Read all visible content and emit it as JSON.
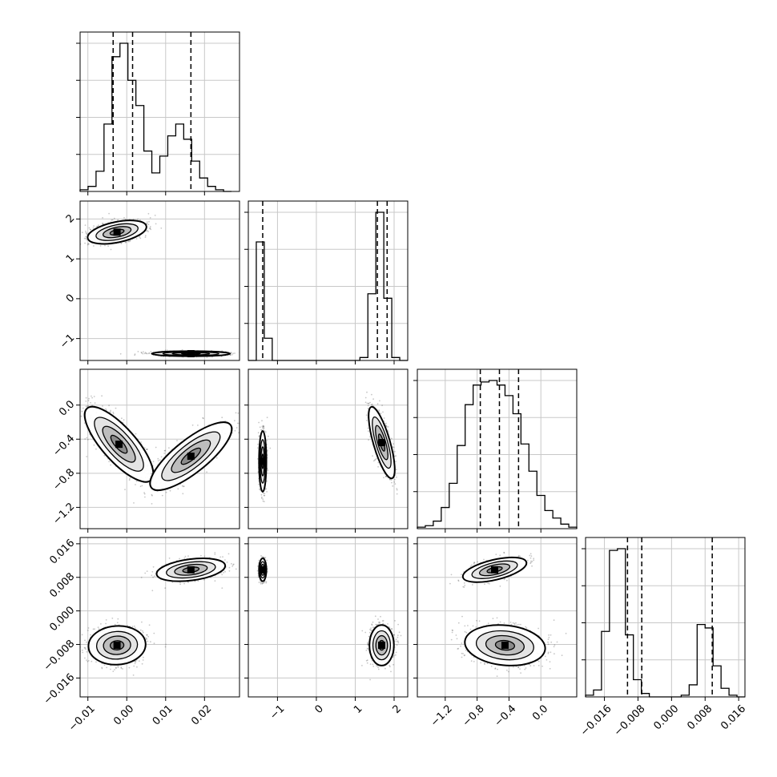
{
  "chart_data": {
    "type": "corner",
    "title": "",
    "n_params": 4,
    "grid": true,
    "parameters": [
      {
        "xlim": [
          -0.012,
          0.029
        ],
        "ylim": [
          -1.55,
          2.45
        ],
        "x_ticks": [
          -0.01,
          0.0,
          0.01,
          0.02
        ],
        "x_tick_labels": [
          "−0.01",
          "0.00",
          "0.01",
          "0.02"
        ],
        "y_ticks": [
          -1,
          0,
          1,
          2
        ],
        "y_tick_labels": [
          "−1",
          "0",
          "1",
          "2"
        ],
        "quantiles": [
          -0.0035,
          0.0015,
          0.0165
        ],
        "hist_bin_width": 0.00205,
        "hist_counts": [
          1,
          3,
          12,
          40,
          80,
          88,
          66,
          51,
          24,
          11,
          21,
          33,
          40,
          31,
          18,
          8,
          3,
          1,
          0
        ]
      },
      {
        "xlim": [
          -1.75,
          2.35
        ],
        "ylim": [
          -1.45,
          0.42
        ],
        "x_ticks": [
          -1,
          0,
          1,
          2
        ],
        "x_tick_labels": [
          "−1",
          "0",
          "1",
          "2"
        ],
        "y_ticks": [
          -1.2,
          -0.8,
          -0.4,
          0.0
        ],
        "y_tick_labels": [
          "−1.2",
          "−0.8",
          "−0.4",
          "0.0"
        ],
        "quantiles": [
          -1.38,
          1.57,
          1.82
        ],
        "hist_bin_width": 0.205,
        "hist_counts": [
          0,
          80,
          15,
          0,
          0,
          0,
          0,
          0,
          0,
          0,
          0,
          0,
          0,
          0,
          2,
          45,
          100,
          42,
          2,
          0
        ]
      },
      {
        "xlim": [
          -1.55,
          0.45
        ],
        "ylim": [
          -0.0205,
          0.0175
        ],
        "x_ticks": [
          -1.2,
          -0.8,
          -0.4,
          0.0
        ],
        "x_tick_labels": [
          "−1.2",
          "−0.8",
          "−0.4",
          "0.0"
        ],
        "y_ticks": [
          -0.016,
          -0.008,
          0.0,
          0.008,
          0.016
        ],
        "y_tick_labels": [
          "−0.016",
          "−0.008",
          "0.000",
          "0.008",
          "0.016"
        ],
        "quantiles": [
          -0.76,
          -0.52,
          -0.28
        ],
        "hist_bin_width": 0.1,
        "hist_counts": [
          1,
          2,
          5,
          14,
          30,
          55,
          82,
          95,
          97,
          98,
          95,
          88,
          76,
          56,
          38,
          22,
          12,
          7,
          3,
          1
        ]
      },
      {
        "xlim": [
          -0.0205,
          0.0175
        ],
        "x_ticks": [
          -0.016,
          -0.008,
          0.0,
          0.008,
          0.016
        ],
        "x_tick_labels": [
          "−0.016",
          "−0.008",
          "0.000",
          "0.008",
          "0.016"
        ],
        "quantiles": [
          -0.0105,
          -0.0071,
          0.0097
        ],
        "hist_bin_width": 0.0019,
        "hist_counts": [
          1,
          4,
          38,
          85,
          86,
          36,
          10,
          2,
          0,
          0,
          0,
          0,
          1,
          7,
          42,
          40,
          18,
          5,
          1,
          0
        ]
      }
    ],
    "scatter_panels": [
      {
        "row": 1,
        "col": 0,
        "modes": [
          {
            "x": -0.0025,
            "y": 1.67,
            "sx": 0.0036,
            "sy": 0.14,
            "rho": 0.45,
            "weight": 0.62
          },
          {
            "x": 0.0165,
            "y": -1.38,
            "sx": 0.0048,
            "sy": 0.03,
            "rho": 0.0,
            "weight": 0.38
          }
        ]
      },
      {
        "row": 2,
        "col": 0,
        "modes": [
          {
            "x": -0.002,
            "y": -0.46,
            "sx": 0.0042,
            "sy": 0.21,
            "rho": -0.78,
            "weight": 0.62
          },
          {
            "x": 0.0165,
            "y": -0.6,
            "sx": 0.005,
            "sy": 0.19,
            "rho": 0.8,
            "weight": 0.38
          }
        ]
      },
      {
        "row": 2,
        "col": 1,
        "modes": [
          {
            "x": -1.38,
            "y": -0.66,
            "sx": 0.045,
            "sy": 0.17,
            "rho": 0.0,
            "weight": 0.38
          },
          {
            "x": 1.68,
            "y": -0.44,
            "sx": 0.16,
            "sy": 0.2,
            "rho": -0.75,
            "weight": 0.62
          }
        ]
      },
      {
        "row": 3,
        "col": 0,
        "modes": [
          {
            "x": -0.0025,
            "y": -0.0082,
            "sx": 0.0035,
            "sy": 0.0022,
            "rho": 0.05,
            "weight": 0.62
          },
          {
            "x": 0.0165,
            "y": 0.0098,
            "sx": 0.0042,
            "sy": 0.0013,
            "rho": 0.35,
            "weight": 0.38
          }
        ]
      },
      {
        "row": 3,
        "col": 1,
        "modes": [
          {
            "x": -1.38,
            "y": 0.0098,
            "sx": 0.045,
            "sy": 0.0013,
            "rho": 0.0,
            "weight": 0.38
          },
          {
            "x": 1.68,
            "y": -0.0082,
            "sx": 0.15,
            "sy": 0.0023,
            "rho": 0.0,
            "weight": 0.62
          }
        ]
      },
      {
        "row": 3,
        "col": 2,
        "modes": [
          {
            "x": -0.58,
            "y": 0.0098,
            "sx": 0.19,
            "sy": 0.0014,
            "rho": 0.55,
            "weight": 0.38
          },
          {
            "x": -0.45,
            "y": -0.0082,
            "sx": 0.24,
            "sy": 0.0023,
            "rho": -0.15,
            "weight": 0.62
          }
        ]
      }
    ]
  }
}
